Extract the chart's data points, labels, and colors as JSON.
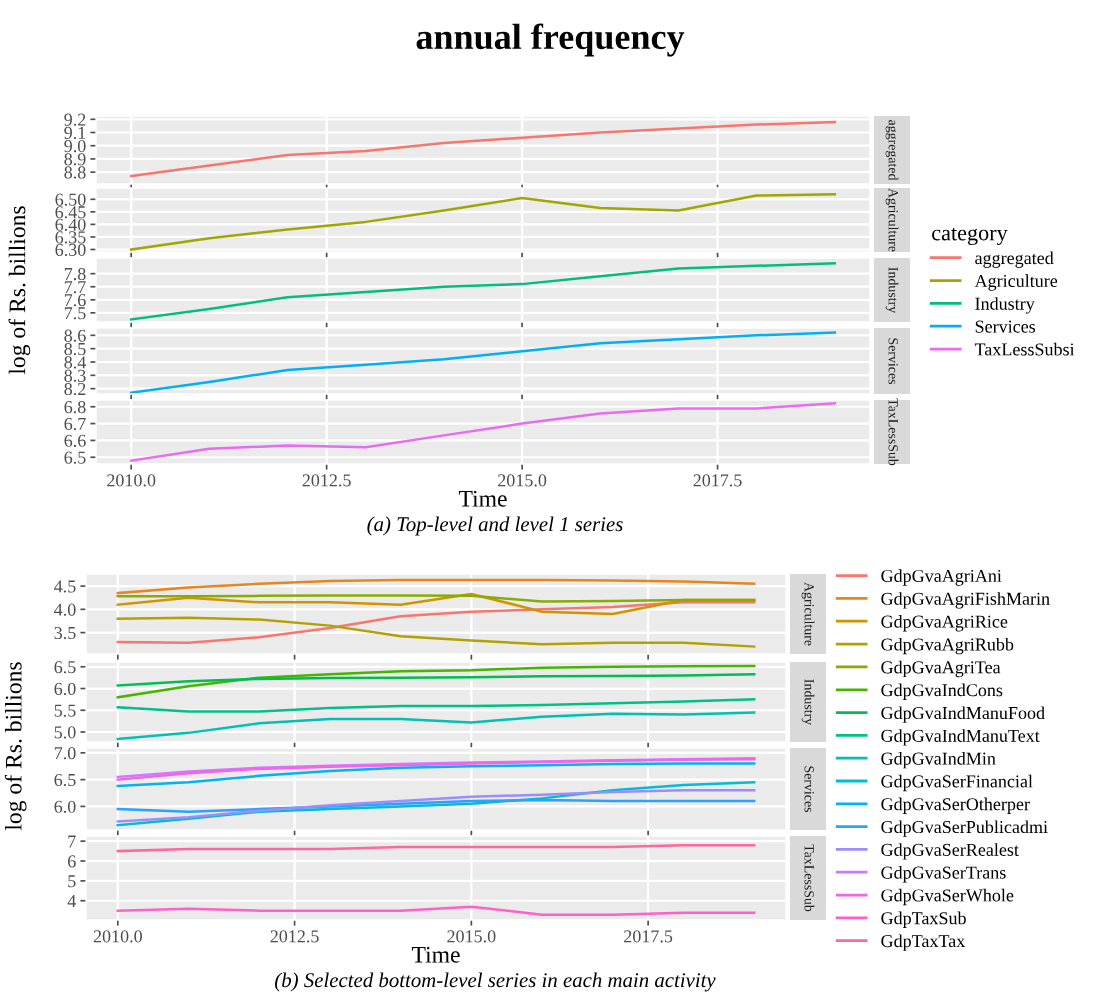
{
  "chart_data": [
    {
      "type": "line",
      "annotations": [
        "aggregated",
        "annual frequency"
      ],
      "legend": "right",
      "legend_title": "category",
      "grid": true,
      "tick_labels": "y",
      "x": [
        2010,
        2011,
        2012,
        2013,
        2014,
        2015,
        2016,
        2017,
        2018,
        2019
      ],
      "xlim": [
        2009.55,
        2019.45
      ],
      "xticks": [
        {
          "value": 2010,
          "label": null
        },
        {
          "value": 2012.5,
          "label": null
        },
        {
          "value": 2015,
          "label": null
        },
        {
          "value": 2017.5,
          "label": null
        }
      ],
      "ylim": [
        8.71,
        9.225
      ],
      "yticks": [
        {
          "value": 8.8,
          "label": "8.8"
        },
        {
          "value": 8.9,
          "label": "8.9"
        },
        {
          "value": 9,
          "label": "9.0"
        },
        {
          "value": 9.1,
          "label": "9.1"
        },
        {
          "value": 9.2,
          "label": "9.2"
        }
      ],
      "series": [
        {
          "name": "aggregated",
          "color": "#F8766D",
          "values": [
            8.77,
            8.85,
            8.93,
            8.96,
            9.02,
            9.06,
            9.1,
            9.13,
            9.16,
            9.18
          ]
        }
      ]
    },
    {
      "type": "line",
      "annotations": [
        "Agriculture"
      ],
      "legend": "right",
      "grid": true,
      "tick_labels": "y",
      "x": [
        2010,
        2011,
        2012,
        2013,
        2014,
        2015,
        2016,
        2017,
        2018,
        2019
      ],
      "xlim": [
        2009.55,
        2019.45
      ],
      "xticks": [
        {
          "value": 2010,
          "label": null
        },
        {
          "value": 2012.5,
          "label": null
        },
        {
          "value": 2015,
          "label": null
        },
        {
          "value": 2017.5,
          "label": null
        }
      ],
      "ylim": [
        6.29,
        6.545
      ],
      "yticks": [
        {
          "value": 6.3,
          "label": "6.30"
        },
        {
          "value": 6.35,
          "label": "6.35"
        },
        {
          "value": 6.4,
          "label": "6.40"
        },
        {
          "value": 6.45,
          "label": "6.45"
        },
        {
          "value": 6.5,
          "label": "6.50"
        }
      ],
      "series": [
        {
          "name": "Agriculture",
          "color": "#A3A500",
          "values": [
            6.3,
            6.345,
            6.38,
            6.41,
            6.455,
            6.505,
            6.465,
            6.455,
            6.515,
            6.52
          ]
        }
      ]
    },
    {
      "type": "line",
      "annotations": [
        "Industry"
      ],
      "legend": "right",
      "ylabel": "log of Rs. billions",
      "grid": true,
      "tick_labels": "y",
      "x": [
        2010,
        2011,
        2012,
        2013,
        2014,
        2015,
        2016,
        2017,
        2018,
        2019
      ],
      "xlim": [
        2009.55,
        2019.45
      ],
      "xticks": [
        {
          "value": 2010,
          "label": null
        },
        {
          "value": 2012.5,
          "label": null
        },
        {
          "value": 2015,
          "label": null
        },
        {
          "value": 2017.5,
          "label": null
        }
      ],
      "ylim": [
        7.43,
        7.92
      ],
      "yticks": [
        {
          "value": 7.5,
          "label": "7.5"
        },
        {
          "value": 7.6,
          "label": "7.6"
        },
        {
          "value": 7.7,
          "label": "7.7"
        },
        {
          "value": 7.8,
          "label": "7.8"
        }
      ],
      "series": [
        {
          "name": "Industry",
          "color": "#00BF7D",
          "values": [
            7.45,
            7.53,
            7.62,
            7.66,
            7.7,
            7.72,
            7.78,
            7.84,
            7.86,
            7.88
          ]
        }
      ]
    },
    {
      "type": "line",
      "annotations": [
        "Services"
      ],
      "legend": "right",
      "grid": true,
      "tick_labels": "y",
      "x": [
        2010,
        2011,
        2012,
        2013,
        2014,
        2015,
        2016,
        2017,
        2018,
        2019
      ],
      "xlim": [
        2009.55,
        2019.45
      ],
      "xticks": [
        {
          "value": 2010,
          "label": null
        },
        {
          "value": 2012.5,
          "label": null
        },
        {
          "value": 2015,
          "label": null
        },
        {
          "value": 2017.5,
          "label": null
        }
      ],
      "ylim": [
        8.16,
        8.655
      ],
      "yticks": [
        {
          "value": 8.2,
          "label": "8.2"
        },
        {
          "value": 8.3,
          "label": "8.3"
        },
        {
          "value": 8.4,
          "label": "8.4"
        },
        {
          "value": 8.5,
          "label": "8.5"
        },
        {
          "value": 8.6,
          "label": "8.6"
        }
      ],
      "series": [
        {
          "name": "Services",
          "color": "#00B0F6",
          "values": [
            8.17,
            8.25,
            8.34,
            8.38,
            8.42,
            8.48,
            8.54,
            8.57,
            8.6,
            8.62
          ]
        }
      ]
    },
    {
      "type": "line",
      "legend": "right",
      "xlabel": "Time",
      "annotations": [
        "TaxLessSub",
        "(a) Top-level and level 1 series"
      ],
      "grid": true,
      "x": [
        2010,
        2011,
        2012,
        2013,
        2014,
        2015,
        2016,
        2017,
        2018,
        2019
      ],
      "xlim": [
        2009.55,
        2019.45
      ],
      "xticks": [
        {
          "value": 2010,
          "label": "2010.0"
        },
        {
          "value": 2012.5,
          "label": "2012.5"
        },
        {
          "value": 2015,
          "label": "2015.0"
        },
        {
          "value": 2017.5,
          "label": "2017.5"
        }
      ],
      "ylim": [
        6.46,
        6.84
      ],
      "yticks": [
        {
          "value": 6.5,
          "label": "6.5"
        },
        {
          "value": 6.6,
          "label": "6.6"
        },
        {
          "value": 6.7,
          "label": "6.7"
        },
        {
          "value": 6.8,
          "label": "6.8"
        }
      ],
      "series": [
        {
          "name": "TaxLessSubsi",
          "color": "#E76BF3",
          "values": [
            6.48,
            6.55,
            6.57,
            6.56,
            6.63,
            6.7,
            6.76,
            6.79,
            6.79,
            6.82
          ]
        }
      ]
    },
    {
      "type": "line",
      "annotations": [
        "Agriculture"
      ],
      "legend": "right",
      "grid": true,
      "tick_labels": "y",
      "x": [
        2010,
        2011,
        2012,
        2013,
        2014,
        2015,
        2016,
        2017,
        2018,
        2019
      ],
      "xlim": [
        2009.55,
        2019.45
      ],
      "xticks": [
        {
          "value": 2010,
          "label": null
        },
        {
          "value": 2012.5,
          "label": null
        },
        {
          "value": 2015,
          "label": null
        },
        {
          "value": 2017.5,
          "label": null
        }
      ],
      "ylim": [
        3.04,
        4.76
      ],
      "yticks": [
        {
          "value": 3.5,
          "label": "3.5"
        },
        {
          "value": 4,
          "label": "4.0"
        },
        {
          "value": 4.5,
          "label": "4.5"
        }
      ],
      "series": [
        {
          "name": "GdpGvaAgriAni",
          "color": "#F8766D",
          "values": [
            3.3,
            3.28,
            3.4,
            3.6,
            3.85,
            3.95,
            4.0,
            4.05,
            4.15,
            4.15
          ]
        },
        {
          "name": "GdpGvaAgriFishMarin",
          "color": "#E7851E",
          "values": [
            4.35,
            4.47,
            4.55,
            4.61,
            4.63,
            4.63,
            4.63,
            4.62,
            4.6,
            4.55
          ]
        },
        {
          "name": "GdpGvaAgriRice",
          "color": "#D09400",
          "values": [
            4.1,
            4.25,
            4.15,
            4.15,
            4.1,
            4.33,
            3.95,
            3.9,
            4.2,
            4.2
          ]
        },
        {
          "name": "GdpGvaAgriRubb",
          "color": "#B2A100",
          "values": [
            3.8,
            3.82,
            3.78,
            3.65,
            3.42,
            3.33,
            3.25,
            3.28,
            3.28,
            3.2
          ]
        },
        {
          "name": "GdpGvaAgriTea",
          "color": "#89AC00",
          "values": [
            4.28,
            4.28,
            4.29,
            4.3,
            4.3,
            4.29,
            4.17,
            4.18,
            4.2,
            4.2
          ]
        }
      ]
    },
    {
      "type": "line",
      "annotations": [
        "Industry"
      ],
      "legend": "right",
      "ylabel": "log of Rs. billions",
      "grid": true,
      "tick_labels": "y",
      "x": [
        2010,
        2011,
        2012,
        2013,
        2014,
        2015,
        2016,
        2017,
        2018,
        2019
      ],
      "xlim": [
        2009.55,
        2019.45
      ],
      "xticks": [
        {
          "value": 2010,
          "label": null
        },
        {
          "value": 2012.5,
          "label": null
        },
        {
          "value": 2015,
          "label": null
        },
        {
          "value": 2017.5,
          "label": null
        }
      ],
      "ylim": [
        4.77,
        6.61
      ],
      "yticks": [
        {
          "value": 5,
          "label": "5.0"
        },
        {
          "value": 5.5,
          "label": "5.5"
        },
        {
          "value": 6,
          "label": "6.0"
        },
        {
          "value": 6.5,
          "label": "6.5"
        }
      ],
      "series": [
        {
          "name": "GdpGvaIndCons",
          "color": "#45B500",
          "values": [
            5.8,
            6.05,
            6.25,
            6.33,
            6.4,
            6.42,
            6.48,
            6.5,
            6.51,
            6.52
          ]
        },
        {
          "name": "GdpGvaIndManuFood",
          "color": "#00BC51",
          "values": [
            6.07,
            6.17,
            6.22,
            6.24,
            6.25,
            6.26,
            6.28,
            6.29,
            6.3,
            6.33
          ]
        },
        {
          "name": "GdpGvaIndManuText",
          "color": "#00C087",
          "values": [
            5.57,
            5.47,
            5.47,
            5.55,
            5.6,
            5.6,
            5.62,
            5.66,
            5.7,
            5.75
          ]
        },
        {
          "name": "GdpGvaIndMin",
          "color": "#00C0B2",
          "values": [
            4.84,
            4.98,
            5.2,
            5.3,
            5.3,
            5.22,
            5.35,
            5.42,
            5.4,
            5.45
          ]
        }
      ]
    },
    {
      "type": "line",
      "annotations": [
        "Services"
      ],
      "legend": "right",
      "grid": true,
      "tick_labels": "y",
      "x": [
        2010,
        2011,
        2012,
        2013,
        2014,
        2015,
        2016,
        2017,
        2018,
        2019
      ],
      "xlim": [
        2009.55,
        2019.45
      ],
      "xticks": [
        {
          "value": 2010,
          "label": null
        },
        {
          "value": 2012.5,
          "label": null
        },
        {
          "value": 2015,
          "label": null
        },
        {
          "value": 2017.5,
          "label": null
        }
      ],
      "ylim": [
        5.56,
        7.09
      ],
      "yticks": [
        {
          "value": 6,
          "label": "6.0"
        },
        {
          "value": 6.5,
          "label": "6.5"
        },
        {
          "value": 7,
          "label": "7.0"
        }
      ],
      "series": [
        {
          "name": "GdpGvaSerFinancial",
          "color": "#00BCD6",
          "values": [
            5.65,
            5.77,
            5.9,
            5.95,
            6.0,
            6.05,
            6.15,
            6.3,
            6.4,
            6.45
          ]
        },
        {
          "name": "GdpGvaSerOtherper",
          "color": "#00B3F2",
          "values": [
            6.38,
            6.45,
            6.57,
            6.66,
            6.72,
            6.75,
            6.77,
            6.79,
            6.8,
            6.8
          ]
        },
        {
          "name": "GdpGvaSerPublicadmi",
          "color": "#29A3FF",
          "values": [
            5.95,
            5.9,
            5.95,
            6.0,
            6.05,
            6.1,
            6.12,
            6.1,
            6.1,
            6.1
          ]
        },
        {
          "name": "GdpGvaSerRealest",
          "color": "#9C8DFF",
          "values": [
            5.72,
            5.8,
            5.92,
            6.02,
            6.1,
            6.18,
            6.22,
            6.27,
            6.3,
            6.3
          ]
        },
        {
          "name": "GdpGvaSerTrans",
          "color": "#D277FF",
          "values": [
            6.55,
            6.65,
            6.72,
            6.76,
            6.79,
            6.82,
            6.84,
            6.86,
            6.88,
            6.9
          ]
        },
        {
          "name": "GdpGvaSerWhole",
          "color": "#F166E8",
          "values": [
            6.5,
            6.62,
            6.7,
            6.74,
            6.77,
            6.8,
            6.83,
            6.85,
            6.87,
            6.88
          ]
        }
      ]
    },
    {
      "type": "line",
      "legend": "right",
      "xlabel": "Time",
      "annotations": [
        "TaxLessSub",
        "(b) Selected bottom-level series in each main activity"
      ],
      "grid": true,
      "x": [
        2010,
        2011,
        2012,
        2013,
        2014,
        2015,
        2016,
        2017,
        2018,
        2019
      ],
      "xlim": [
        2009.55,
        2019.45
      ],
      "xticks": [
        {
          "value": 2010,
          "label": "2010.0"
        },
        {
          "value": 2012.5,
          "label": "2012.5"
        },
        {
          "value": 2015,
          "label": "2015.0"
        },
        {
          "value": 2017.5,
          "label": "2017.5"
        }
      ],
      "ylim": [
        3.03,
        7.26
      ],
      "yticks": [
        4,
        5,
        6,
        7
      ],
      "series": [
        {
          "name": "GdpTaxSub",
          "color": "#FF61C7",
          "values": [
            3.5,
            3.6,
            3.5,
            3.5,
            3.5,
            3.7,
            3.3,
            3.3,
            3.4,
            3.4
          ]
        },
        {
          "name": "GdpTaxTax",
          "color": "#FF689E",
          "values": [
            6.5,
            6.6,
            6.6,
            6.6,
            6.7,
            6.7,
            6.7,
            6.7,
            6.8,
            6.8
          ]
        }
      ]
    }
  ]
}
